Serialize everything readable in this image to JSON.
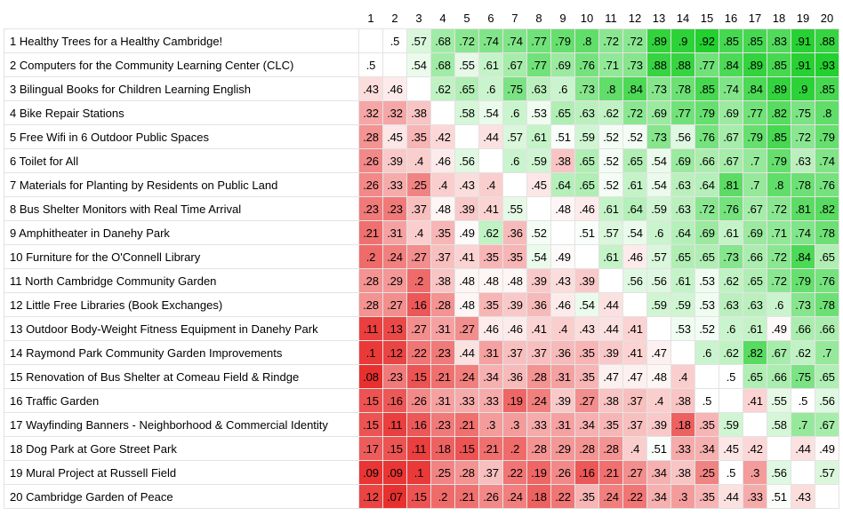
{
  "chart_data": {
    "type": "heatmap",
    "column_labels": [
      "1",
      "2",
      "3",
      "4",
      "5",
      "6",
      "7",
      "8",
      "9",
      "10",
      "11",
      "12",
      "13",
      "14",
      "15",
      "16",
      "17",
      "18",
      "19",
      "20"
    ],
    "rows": [
      {
        "label": "1 Healthy Trees for a Healthy Cambridge!",
        "values": [
          null,
          ".5",
          ".57",
          ".68",
          ".72",
          ".74",
          ".74",
          ".77",
          ".79",
          ".8",
          ".72",
          ".72",
          ".89",
          ".9",
          ".92",
          ".85",
          ".85",
          ".83",
          ".91",
          ".88"
        ]
      },
      {
        "label": "2 Computers for the Community Learning Center (CLC)",
        "values": [
          ".5",
          null,
          ".54",
          ".68",
          ".55",
          ".61",
          ".67",
          ".77",
          ".69",
          ".76",
          ".71",
          ".73",
          ".88",
          ".88",
          ".77",
          ".84",
          ".89",
          ".85",
          ".91",
          ".93"
        ]
      },
      {
        "label": "3 Bilingual Books for Children Learning English",
        "values": [
          ".43",
          ".46",
          null,
          ".62",
          ".65",
          ".6",
          ".75",
          ".63",
          ".6",
          ".73",
          ".8",
          ".84",
          ".73",
          ".78",
          ".85",
          ".74",
          ".84",
          ".89",
          ".9",
          ".85"
        ]
      },
      {
        "label": "4 Bike Repair Stations",
        "values": [
          ".32",
          ".32",
          ".38",
          null,
          ".58",
          ".54",
          ".6",
          ".53",
          ".65",
          ".63",
          ".62",
          ".72",
          ".69",
          ".77",
          ".79",
          ".69",
          ".77",
          ".82",
          ".75",
          ".8"
        ]
      },
      {
        "label": "5 Free Wifi in 6 Outdoor Public Spaces",
        "values": [
          ".28",
          ".45",
          ".35",
          ".42",
          null,
          ".44",
          ".57",
          ".61",
          ".51",
          ".59",
          ".52",
          ".52",
          ".73",
          ".56",
          ".76",
          ".67",
          ".79",
          ".85",
          ".72",
          ".79"
        ]
      },
      {
        "label": "6 Toilet for All",
        "values": [
          ".26",
          ".39",
          ".4",
          ".46",
          ".56",
          null,
          ".6",
          ".59",
          ".38",
          ".65",
          ".52",
          ".65",
          ".54",
          ".69",
          ".66",
          ".67",
          ".7",
          ".79",
          ".63",
          ".74"
        ]
      },
      {
        "label": "7 Materials for Planting by Residents on Public Land",
        "values": [
          ".26",
          ".33",
          ".25",
          ".4",
          ".43",
          ".4",
          null,
          ".45",
          ".64",
          ".65",
          ".52",
          ".61",
          ".54",
          ".63",
          ".64",
          ".81",
          ".7",
          ".8",
          ".78",
          ".76"
        ]
      },
      {
        "label": "8 Bus Shelter Monitors with Real Time Arrival",
        "values": [
          ".23",
          ".23",
          ".37",
          ".48",
          ".39",
          ".41",
          ".55",
          null,
          ".48",
          ".46",
          ".61",
          ".64",
          ".59",
          ".63",
          ".72",
          ".76",
          ".67",
          ".72",
          ".81",
          ".82"
        ]
      },
      {
        "label": "9 Amphitheater in Danehy Park",
        "values": [
          ".21",
          ".31",
          ".4",
          ".35",
          ".49",
          ".62",
          ".36",
          ".52",
          null,
          ".51",
          ".57",
          ".54",
          ".6",
          ".64",
          ".69",
          ".61",
          ".69",
          ".71",
          ".74",
          ".78"
        ]
      },
      {
        "label": "10 Furniture for the O'Connell Library",
        "values": [
          ".2",
          ".24",
          ".27",
          ".37",
          ".41",
          ".35",
          ".35",
          ".54",
          ".49",
          null,
          ".61",
          ".46",
          ".57",
          ".65",
          ".65",
          ".73",
          ".66",
          ".72",
          ".84",
          ".65"
        ]
      },
      {
        "label": "11 North Cambridge Community Garden",
        "values": [
          ".28",
          ".29",
          ".2",
          ".38",
          ".48",
          ".48",
          ".48",
          ".39",
          ".43",
          ".39",
          null,
          ".56",
          ".56",
          ".61",
          ".53",
          ".62",
          ".65",
          ".72",
          ".79",
          ".76"
        ]
      },
      {
        "label": "12 Little Free Libraries (Book Exchanges)",
        "values": [
          ".28",
          ".27",
          ".16",
          ".28",
          ".48",
          ".35",
          ".39",
          ".36",
          ".46",
          ".54",
          ".44",
          null,
          ".59",
          ".59",
          ".53",
          ".63",
          ".63",
          ".6",
          ".73",
          ".78"
        ]
      },
      {
        "label": "13 Outdoor Body-Weight Fitness Equipment in Danehy Park",
        "values": [
          ".11",
          ".13",
          ".27",
          ".31",
          ".27",
          ".46",
          ".46",
          ".41",
          ".4",
          ".43",
          ".44",
          ".41",
          null,
          ".53",
          ".52",
          ".6",
          ".61",
          ".49",
          ".66",
          ".66"
        ]
      },
      {
        "label": "14 Raymond Park Community Garden Improvements",
        "values": [
          ".1",
          ".12",
          ".22",
          ".23",
          ".44",
          ".31",
          ".37",
          ".37",
          ".36",
          ".35",
          ".39",
          ".41",
          ".47",
          null,
          ".6",
          ".62",
          ".82",
          ".67",
          ".62",
          ".7"
        ]
      },
      {
        "label": "15 Renovation of Bus Shelter at Comeau Field & Rindge",
        "values": [
          ".08",
          ".23",
          ".15",
          ".21",
          ".24",
          ".34",
          ".36",
          ".28",
          ".31",
          ".35",
          ".47",
          ".47",
          ".48",
          ".4",
          null,
          ".5",
          ".65",
          ".66",
          ".75",
          ".65"
        ]
      },
      {
        "label": "16 Traffic Garden",
        "values": [
          ".15",
          ".16",
          ".26",
          ".31",
          ".33",
          ".33",
          ".19",
          ".24",
          ".39",
          ".27",
          ".38",
          ".37",
          ".4",
          ".38",
          ".5",
          null,
          ".41",
          ".55",
          ".5",
          ".56"
        ]
      },
      {
        "label": "17 Wayfinding Banners - Neighborhood & Commercial Identity",
        "values": [
          ".15",
          ".11",
          ".16",
          ".23",
          ".21",
          ".3",
          ".3",
          ".33",
          ".31",
          ".34",
          ".35",
          ".37",
          ".39",
          ".18",
          ".35",
          ".59",
          null,
          ".58",
          ".7",
          ".67"
        ]
      },
      {
        "label": "18 Dog Park at Gore Street Park",
        "values": [
          ".17",
          ".15",
          ".11",
          ".18",
          ".15",
          ".21",
          ".2",
          ".28",
          ".29",
          ".28",
          ".28",
          ".4",
          ".51",
          ".33",
          ".34",
          ".45",
          ".42",
          null,
          ".44",
          ".49"
        ]
      },
      {
        "label": "19 Mural Project at Russell Field",
        "values": [
          ".09",
          ".09",
          ".1",
          ".25",
          ".28",
          ".37",
          ".22",
          ".19",
          ".26",
          ".16",
          ".21",
          ".27",
          ".34",
          ".38",
          ".25",
          ".5",
          ".3",
          ".56",
          null,
          ".57"
        ]
      },
      {
        "label": "20 Cambridge Garden of Peace",
        "values": [
          ".12",
          ".07",
          ".15",
          ".2",
          ".21",
          ".26",
          ".24",
          ".18",
          ".22",
          ".35",
          ".24",
          ".22",
          ".34",
          ".3",
          ".35",
          ".44",
          ".33",
          ".51",
          ".43",
          null
        ]
      }
    ],
    "color_scale": {
      "low": "#e8302f",
      "mid": "#ffffff",
      "high": "#22d02e",
      "midpoint": 0.5
    }
  }
}
